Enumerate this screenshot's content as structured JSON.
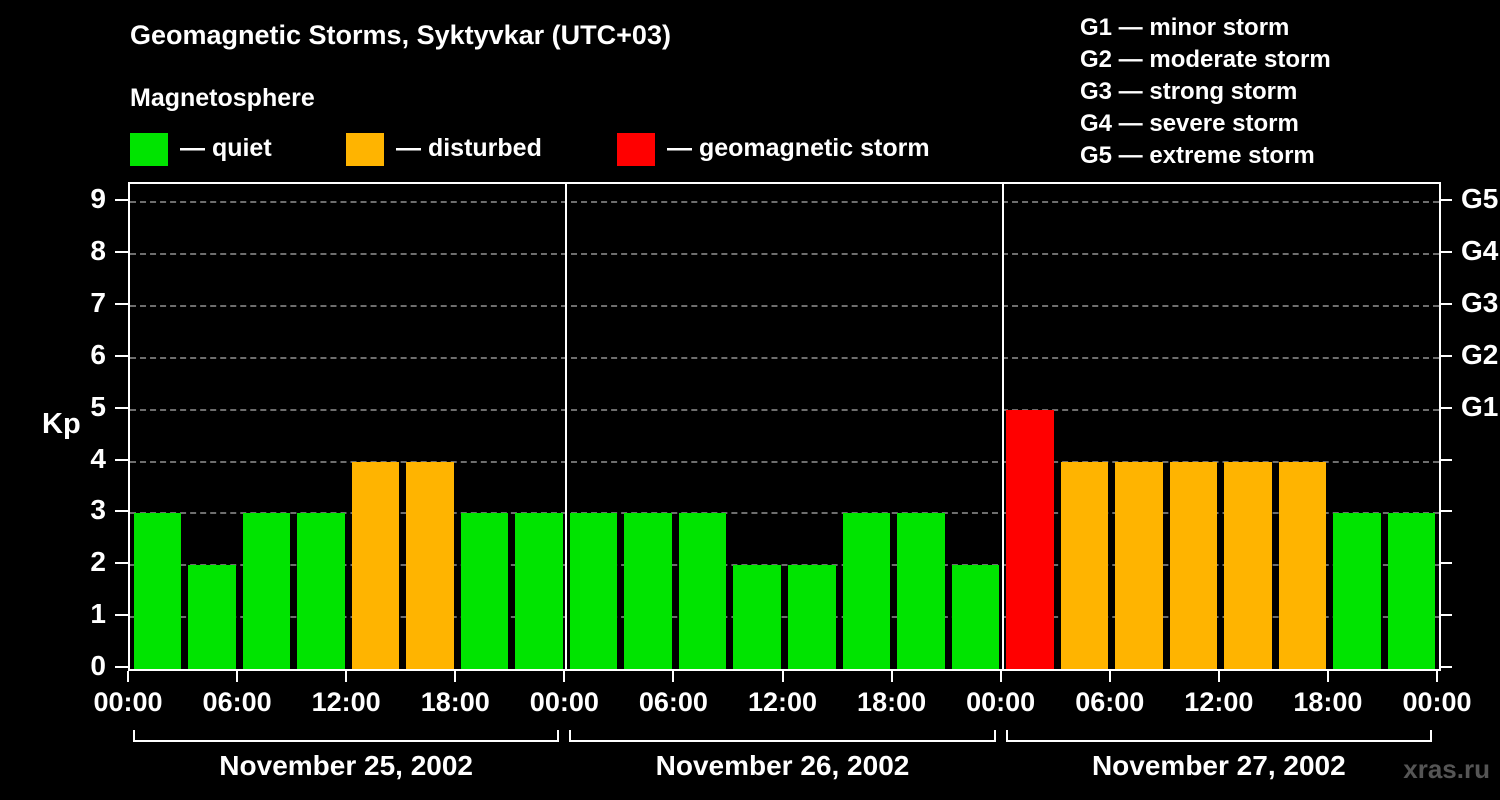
{
  "title": "Geomagnetic Storms, Syktyvkar (UTC+03)",
  "subtitle": "Magnetosphere",
  "legend": {
    "items": [
      {
        "key": "quiet",
        "label": "— quiet",
        "color": "#00e400"
      },
      {
        "key": "disturbed",
        "label": "— disturbed",
        "color": "#ffb400"
      },
      {
        "key": "storm",
        "label": "— geomagnetic storm",
        "color": "#ff0000"
      }
    ]
  },
  "g_legend": {
    "lines": [
      "G1 — minor storm",
      "G2 — moderate storm",
      "G3 — strong storm",
      "G4 — severe storm",
      "G5 — extreme storm"
    ]
  },
  "watermark": "xras.ru",
  "chart_data": {
    "type": "bar",
    "title": "Geomagnetic Storms, Syktyvkar (UTC+03)",
    "subtitle": "Magnetosphere",
    "ylabel": "Kp",
    "ylim": [
      0,
      9
    ],
    "yticks": [
      0,
      1,
      2,
      3,
      4,
      5,
      6,
      7,
      8,
      9
    ],
    "right_axis": [
      {
        "label": "G1",
        "kp": 5
      },
      {
        "label": "G2",
        "kp": 6
      },
      {
        "label": "G3",
        "kp": 7
      },
      {
        "label": "G4",
        "kp": 8
      },
      {
        "label": "G5",
        "kp": 9
      }
    ],
    "hours_per_bar": 3,
    "x_tick_labels": [
      "00:00",
      "06:00",
      "12:00",
      "18:00",
      "00:00",
      "06:00",
      "12:00",
      "18:00",
      "00:00",
      "06:00",
      "12:00",
      "18:00",
      "00:00"
    ],
    "days": [
      {
        "date": "November 25, 2002",
        "values": [
          3,
          2,
          3,
          3,
          4,
          4,
          3,
          3
        ]
      },
      {
        "date": "November 26, 2002",
        "values": [
          3,
          3,
          3,
          2,
          2,
          3,
          3,
          2
        ]
      },
      {
        "date": "November 27, 2002",
        "values": [
          5,
          4,
          4,
          4,
          4,
          4,
          3,
          3
        ]
      }
    ],
    "color_rules": {
      "quiet_max_kp": 3,
      "disturbed_max_kp": 4
    },
    "grid": "dashed horizontal",
    "legend_position": "top-left",
    "background": "#000000"
  }
}
